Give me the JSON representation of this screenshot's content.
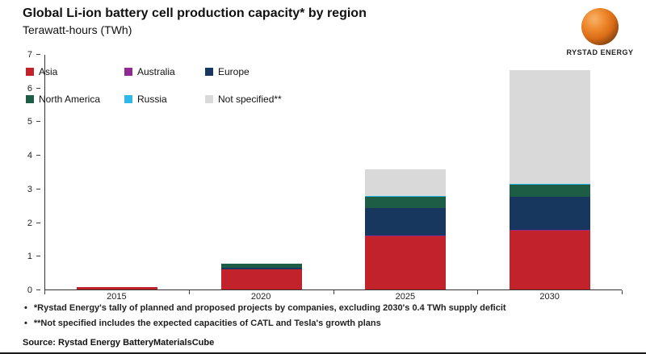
{
  "header": {
    "title": "Global Li-ion battery cell production capacity* by region",
    "subtitle": "Terawatt-hours (TWh)",
    "logo_text": "RYSTAD ENERGY"
  },
  "chart_data": {
    "type": "bar",
    "stacked": true,
    "title": "Global Li-ion battery cell production capacity* by region",
    "ylabel": "Terawatt-hours (TWh)",
    "ylim": [
      0,
      7
    ],
    "yticks": [
      0,
      1,
      2,
      3,
      4,
      5,
      6,
      7
    ],
    "grid": false,
    "legend_position": "top-left-inside",
    "categories": [
      "2015",
      "2020",
      "2025",
      "2030"
    ],
    "series": [
      {
        "name": "Asia",
        "color": "#c2232a",
        "values": [
          0.07,
          0.6,
          1.6,
          1.75
        ]
      },
      {
        "name": "Australia",
        "color": "#8f2a90",
        "values": [
          0.0,
          0.01,
          0.02,
          0.02
        ]
      },
      {
        "name": "Europe",
        "color": "#17375e",
        "values": [
          0.0,
          0.05,
          0.8,
          1.0
        ]
      },
      {
        "name": "North America",
        "color": "#1d5c45",
        "values": [
          0.0,
          0.1,
          0.35,
          0.35
        ]
      },
      {
        "name": "Russia",
        "color": "#2fb9e8",
        "values": [
          0.0,
          0.01,
          0.02,
          0.02
        ]
      },
      {
        "name": "Not specified**",
        "color": "#d9d9d9",
        "values": [
          0.0,
          0.0,
          0.8,
          3.4
        ]
      }
    ]
  },
  "footnotes": {
    "bullet": "•",
    "items": [
      "*Rystad Energy's tally of planned and proposed projects by companies, excluding 2030's 0.4 TWh supply deficit",
      "**Not specified includes the expected capacities of CATL and Tesla's growth plans"
    ]
  },
  "footer": {
    "source": "Source: Rystad Energy BatteryMaterialsCube"
  }
}
